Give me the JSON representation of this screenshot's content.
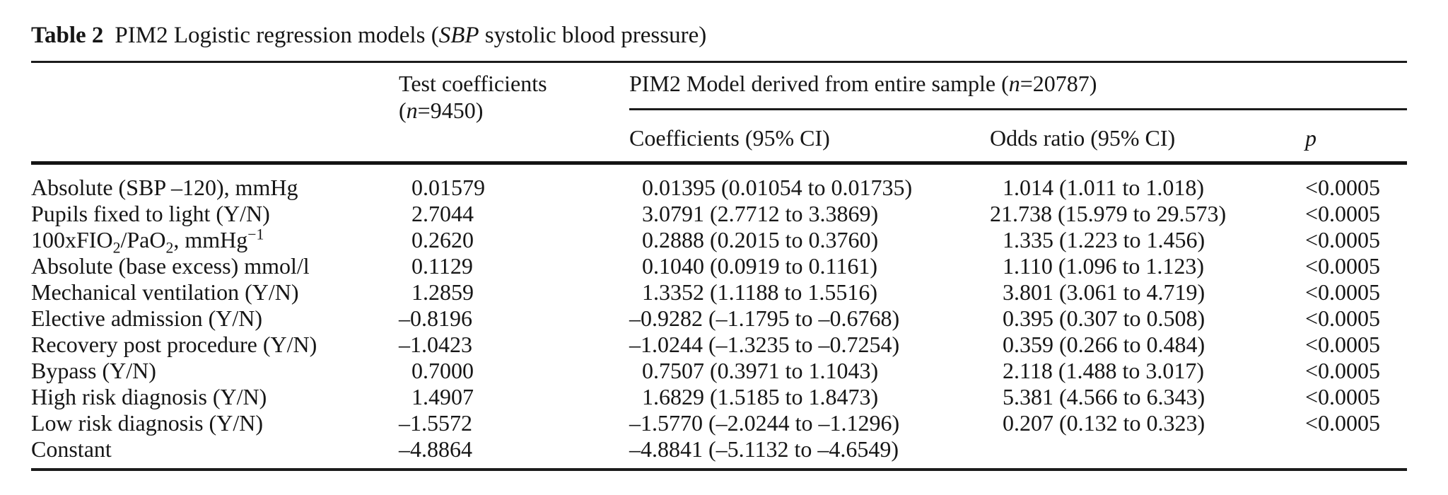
{
  "title": {
    "label": "Table 2",
    "text": "PIM2 Logistic regression models (<i>SBP</i> systolic blood pressure)"
  },
  "header": {
    "test_coefficients_line1": "Test coefficients",
    "test_coefficients_line2": "(<i>n</i>=9450)",
    "pim2_model": "PIM2 Model derived from entire sample (<i>n</i>=20787)",
    "columns": {
      "coefficients": "Coefficients (95% CI)",
      "odds_ratio": "Odds ratio (95% CI)",
      "p": "p"
    }
  },
  "table": {
    "rows": [
      {
        "label": "Absolute (SBP –120), mmHg",
        "test_coefficient": "0.01579",
        "coefficient_ci": "0.01395 (0.01054 to 0.01735)",
        "odds_ratio_ci": "1.014 (1.011 to 1.018)",
        "p": "<0.0005"
      },
      {
        "label": "Pupils fixed to light (Y/N)",
        "test_coefficient": "2.7044",
        "coefficient_ci": "3.0791 (2.7712 to 3.3869)",
        "odds_ratio_ci": "21.738 (15.979 to 29.573)",
        "p": "<0.0005"
      },
      {
        "label": "100xFIO<sub>2</sub>/PaO<sub>2</sub>, mmHg<sup>−1</sup>",
        "test_coefficient": "0.2620",
        "coefficient_ci": "0.2888 (0.2015 to 0.3760)",
        "odds_ratio_ci": "1.335 (1.223 to 1.456)",
        "p": "<0.0005"
      },
      {
        "label": "Absolute (base excess) mmol/l",
        "test_coefficient": "0.1129",
        "coefficient_ci": "0.1040 (0.0919 to 0.1161)",
        "odds_ratio_ci": "1.110 (1.096 to 1.123)",
        "p": "<0.0005"
      },
      {
        "label": "Mechanical ventilation (Y/N)",
        "test_coefficient": "1.2859",
        "coefficient_ci": "1.3352 (1.1188 to 1.5516)",
        "odds_ratio_ci": "3.801 (3.061 to 4.719)",
        "p": "<0.0005"
      },
      {
        "label": "Elective admission (Y/N)",
        "test_coefficient": "–0.8196",
        "coefficient_ci": "–0.9282 (–1.1795 to –0.6768)",
        "odds_ratio_ci": "0.395 (0.307 to 0.508)",
        "p": "<0.0005"
      },
      {
        "label": "Recovery post procedure (Y/N)",
        "test_coefficient": "–1.0423",
        "coefficient_ci": "–1.0244 (–1.3235 to –0.7254)",
        "odds_ratio_ci": "0.359 (0.266 to 0.484)",
        "p": "<0.0005"
      },
      {
        "label": "Bypass (Y/N)",
        "test_coefficient": "0.7000",
        "coefficient_ci": "0.7507 (0.3971 to 1.1043)",
        "odds_ratio_ci": "2.118 (1.488 to 3.017)",
        "p": "<0.0005"
      },
      {
        "label": "High risk diagnosis (Y/N)",
        "test_coefficient": "1.4907",
        "coefficient_ci": "1.6829 (1.5185 to 1.8473)",
        "odds_ratio_ci": "5.381 (4.566 to 6.343)",
        "p": "<0.0005"
      },
      {
        "label": "Low risk diagnosis (Y/N)",
        "test_coefficient": "–1.5572",
        "coefficient_ci": "–1.5770 (–2.0244 to –1.1296)",
        "odds_ratio_ci": "0.207 (0.132 to 0.323)",
        "p": "<0.0005"
      },
      {
        "label": "Constant",
        "test_coefficient": "–4.8864",
        "coefficient_ci": "–4.8841 (–5.1132 to –4.6549)",
        "odds_ratio_ci": "",
        "p": ""
      }
    ]
  }
}
